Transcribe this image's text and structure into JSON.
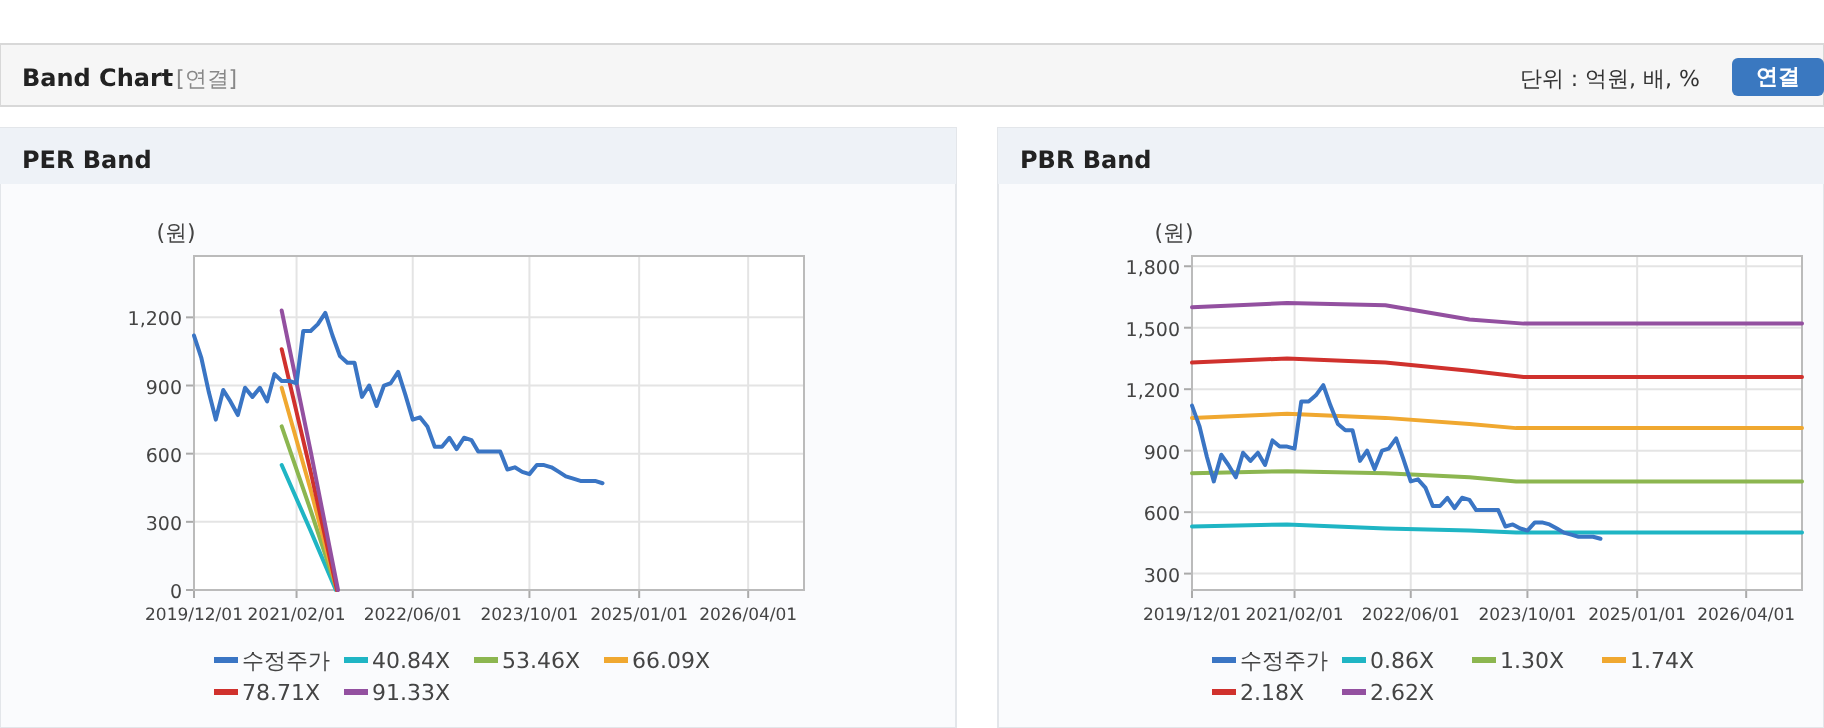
{
  "chart_data": [
    {
      "type": "line",
      "title": "PER Band",
      "ylabel": "(원)",
      "annotations": [
        "Band Chart",
        "[연결]",
        "단위 : 억원, 배, %",
        "연결"
      ],
      "xlim": [
        "2019-12-01",
        "2026-11-20"
      ],
      "ylim": [
        0,
        1470
      ],
      "xticks": [
        {
          "value": "2019-12-01",
          "label": "2019/12/01"
        },
        {
          "value": "2021-02-01",
          "label": "2021/02/01"
        },
        {
          "value": "2022-06-01",
          "label": "2022/06/01"
        },
        {
          "value": "2023-10-01",
          "label": "2023/10/01"
        },
        {
          "value": "2025-01-01",
          "label": "2025/01/01"
        },
        {
          "value": "2026-04-01",
          "label": "2026/04/01"
        }
      ],
      "yticks": [
        0,
        300,
        600,
        900,
        {
          "value": 1200,
          "label": "1,200"
        }
      ],
      "grid": true,
      "legend": "bottom",
      "marker": "none",
      "line_style": "solid",
      "series": [
        {
          "name": "수정주가",
          "color": "#3a75c4",
          "x": [
            "2019-12",
            "2020-01",
            "2020-02",
            "2020-03",
            "2020-04",
            "2020-05",
            "2020-06",
            "2020-07",
            "2020-08",
            "2020-09",
            "2020-10",
            "2020-11",
            "2020-12",
            "2021-01",
            "2021-02",
            "2021-03",
            "2021-04",
            "2021-05",
            "2021-06",
            "2021-07",
            "2021-08",
            "2021-09",
            "2021-10",
            "2021-11",
            "2021-12",
            "2022-01",
            "2022-02",
            "2022-03",
            "2022-04",
            "2022-05",
            "2022-06",
            "2022-07",
            "2022-08",
            "2022-09",
            "2022-10",
            "2022-11",
            "2022-12",
            "2023-01",
            "2023-02",
            "2023-03",
            "2023-04",
            "2023-05",
            "2023-06",
            "2023-07",
            "2023-08",
            "2023-09",
            "2023-10",
            "2023-11",
            "2023-12",
            "2024-01",
            "2024-02",
            "2024-03",
            "2024-04",
            "2024-05",
            "2024-06",
            "2024-07",
            "2024-08"
          ],
          "values": [
            1120,
            1020,
            870,
            750,
            880,
            830,
            770,
            890,
            850,
            890,
            830,
            950,
            920,
            920,
            910,
            1140,
            1140,
            1170,
            1220,
            1120,
            1030,
            1000,
            1000,
            850,
            900,
            810,
            900,
            910,
            960,
            860,
            750,
            760,
            720,
            630,
            630,
            670,
            620,
            670,
            660,
            610,
            610,
            610,
            610,
            530,
            540,
            520,
            510,
            550,
            550,
            540,
            520,
            500,
            490,
            480,
            480,
            480,
            470
          ]
        },
        {
          "name": "40.84X",
          "color": "#1fb5c4",
          "x": [
            "2020-12-01",
            "2021-04-01",
            "2021-07-15"
          ],
          "values": [
            550,
            260,
            0
          ]
        },
        {
          "name": "53.46X",
          "color": "#8cb650",
          "x": [
            "2020-12-01",
            "2021-04-01",
            "2021-07-20"
          ],
          "values": [
            720,
            350,
            0
          ]
        },
        {
          "name": "66.09X",
          "color": "#f0a830",
          "x": [
            "2020-12-01",
            "2021-04-01",
            "2021-07-20"
          ],
          "values": [
            890,
            440,
            0
          ]
        },
        {
          "name": "78.71X",
          "color": "#d0312d",
          "x": [
            "2020-12-01",
            "2021-04-01",
            "2021-07-20"
          ],
          "values": [
            1060,
            520,
            0
          ]
        },
        {
          "name": "91.33X",
          "color": "#9350a0",
          "x": [
            "2020-12-01",
            "2021-04-01",
            "2021-07-24"
          ],
          "values": [
            1230,
            610,
            0
          ]
        }
      ]
    },
    {
      "type": "line",
      "title": "PBR Band",
      "ylabel": "(원)",
      "xlim": [
        "2019-12-01",
        "2026-11-20"
      ],
      "ylim": [
        220,
        1850
      ],
      "xticks": [
        {
          "value": "2019-12-01",
          "label": "2019/12/01"
        },
        {
          "value": "2021-02-01",
          "label": "2021/02/01"
        },
        {
          "value": "2022-06-01",
          "label": "2022/06/01"
        },
        {
          "value": "2023-10-01",
          "label": "2023/10/01"
        },
        {
          "value": "2025-01-01",
          "label": "2025/01/01"
        },
        {
          "value": "2026-04-01",
          "label": "2026/04/01"
        }
      ],
      "yticks": [
        300,
        600,
        900,
        {
          "value": 1200,
          "label": "1,200"
        },
        {
          "value": 1500,
          "label": "1,500"
        },
        {
          "value": 1800,
          "label": "1,800"
        }
      ],
      "grid": true,
      "legend": "bottom",
      "marker": "none",
      "line_style": "solid",
      "series": [
        {
          "name": "수정주가",
          "color": "#3a75c4",
          "x": [
            "2019-12",
            "2020-01",
            "2020-02",
            "2020-03",
            "2020-04",
            "2020-05",
            "2020-06",
            "2020-07",
            "2020-08",
            "2020-09",
            "2020-10",
            "2020-11",
            "2020-12",
            "2021-01",
            "2021-02",
            "2021-03",
            "2021-04",
            "2021-05",
            "2021-06",
            "2021-07",
            "2021-08",
            "2021-09",
            "2021-10",
            "2021-11",
            "2021-12",
            "2022-01",
            "2022-02",
            "2022-03",
            "2022-04",
            "2022-05",
            "2022-06",
            "2022-07",
            "2022-08",
            "2022-09",
            "2022-10",
            "2022-11",
            "2022-12",
            "2023-01",
            "2023-02",
            "2023-03",
            "2023-04",
            "2023-05",
            "2023-06",
            "2023-07",
            "2023-08",
            "2023-09",
            "2023-10",
            "2023-11",
            "2023-12",
            "2024-01",
            "2024-02",
            "2024-03",
            "2024-04",
            "2024-05",
            "2024-06",
            "2024-07",
            "2024-08"
          ],
          "values": [
            1120,
            1020,
            870,
            750,
            880,
            830,
            770,
            890,
            850,
            890,
            830,
            950,
            920,
            920,
            910,
            1140,
            1140,
            1170,
            1220,
            1120,
            1030,
            1000,
            1000,
            850,
            900,
            810,
            900,
            910,
            960,
            860,
            750,
            760,
            720,
            630,
            630,
            670,
            620,
            670,
            660,
            610,
            610,
            610,
            610,
            530,
            540,
            520,
            510,
            550,
            550,
            540,
            520,
            500,
            490,
            480,
            480,
            480,
            470
          ]
        },
        {
          "name": "0.86X",
          "color": "#1fb5c4",
          "x": [
            "2019-12-01",
            "2021-01-01",
            "2022-02-15",
            "2023-02-01",
            "2023-08-15",
            "2026-11-20"
          ],
          "values": [
            530,
            540,
            520,
            510,
            500,
            500
          ]
        },
        {
          "name": "1.30X",
          "color": "#8cb650",
          "x": [
            "2019-12-01",
            "2021-01-01",
            "2022-02-15",
            "2023-02-01",
            "2023-08-15",
            "2026-11-20"
          ],
          "values": [
            790,
            800,
            790,
            770,
            750,
            750
          ]
        },
        {
          "name": "1.74X",
          "color": "#f0a830",
          "x": [
            "2019-12-01",
            "2021-01-01",
            "2022-02-15",
            "2023-02-01",
            "2023-08-15",
            "2026-11-20"
          ],
          "values": [
            1060,
            1080,
            1060,
            1030,
            1010,
            1010
          ]
        },
        {
          "name": "2.18X",
          "color": "#d0312d",
          "x": [
            "2019-12-01",
            "2021-01-01",
            "2022-02-15",
            "2023-02-01",
            "2023-09-15",
            "2026-11-20"
          ],
          "values": [
            1330,
            1350,
            1330,
            1290,
            1260,
            1260
          ]
        },
        {
          "name": "2.62X",
          "color": "#9350a0",
          "x": [
            "2019-12-01",
            "2021-01-01",
            "2022-02-15",
            "2023-02-01",
            "2023-09-15",
            "2026-11-20"
          ],
          "values": [
            1600,
            1620,
            1610,
            1540,
            1520,
            1520
          ]
        }
      ]
    }
  ]
}
